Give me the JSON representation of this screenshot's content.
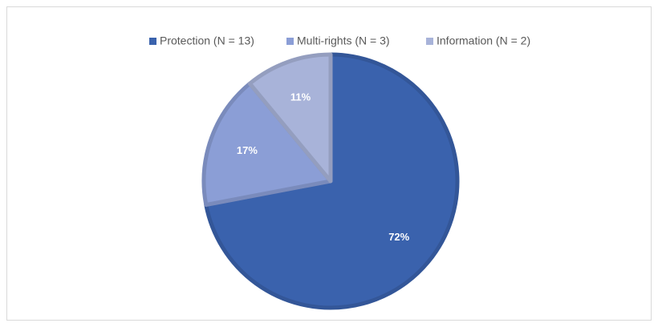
{
  "chart_data": {
    "type": "pie",
    "categories": [
      "Protection (N = 13)",
      "Multi-rights (N = 3)",
      "Information (N = 2)"
    ],
    "values": [
      72,
      17,
      11
    ],
    "value_labels": [
      "72%",
      "17%",
      "11%"
    ],
    "colors": [
      "#3a62ad",
      "#8b9ed6",
      "#a8b3d9"
    ],
    "legend": "top"
  }
}
